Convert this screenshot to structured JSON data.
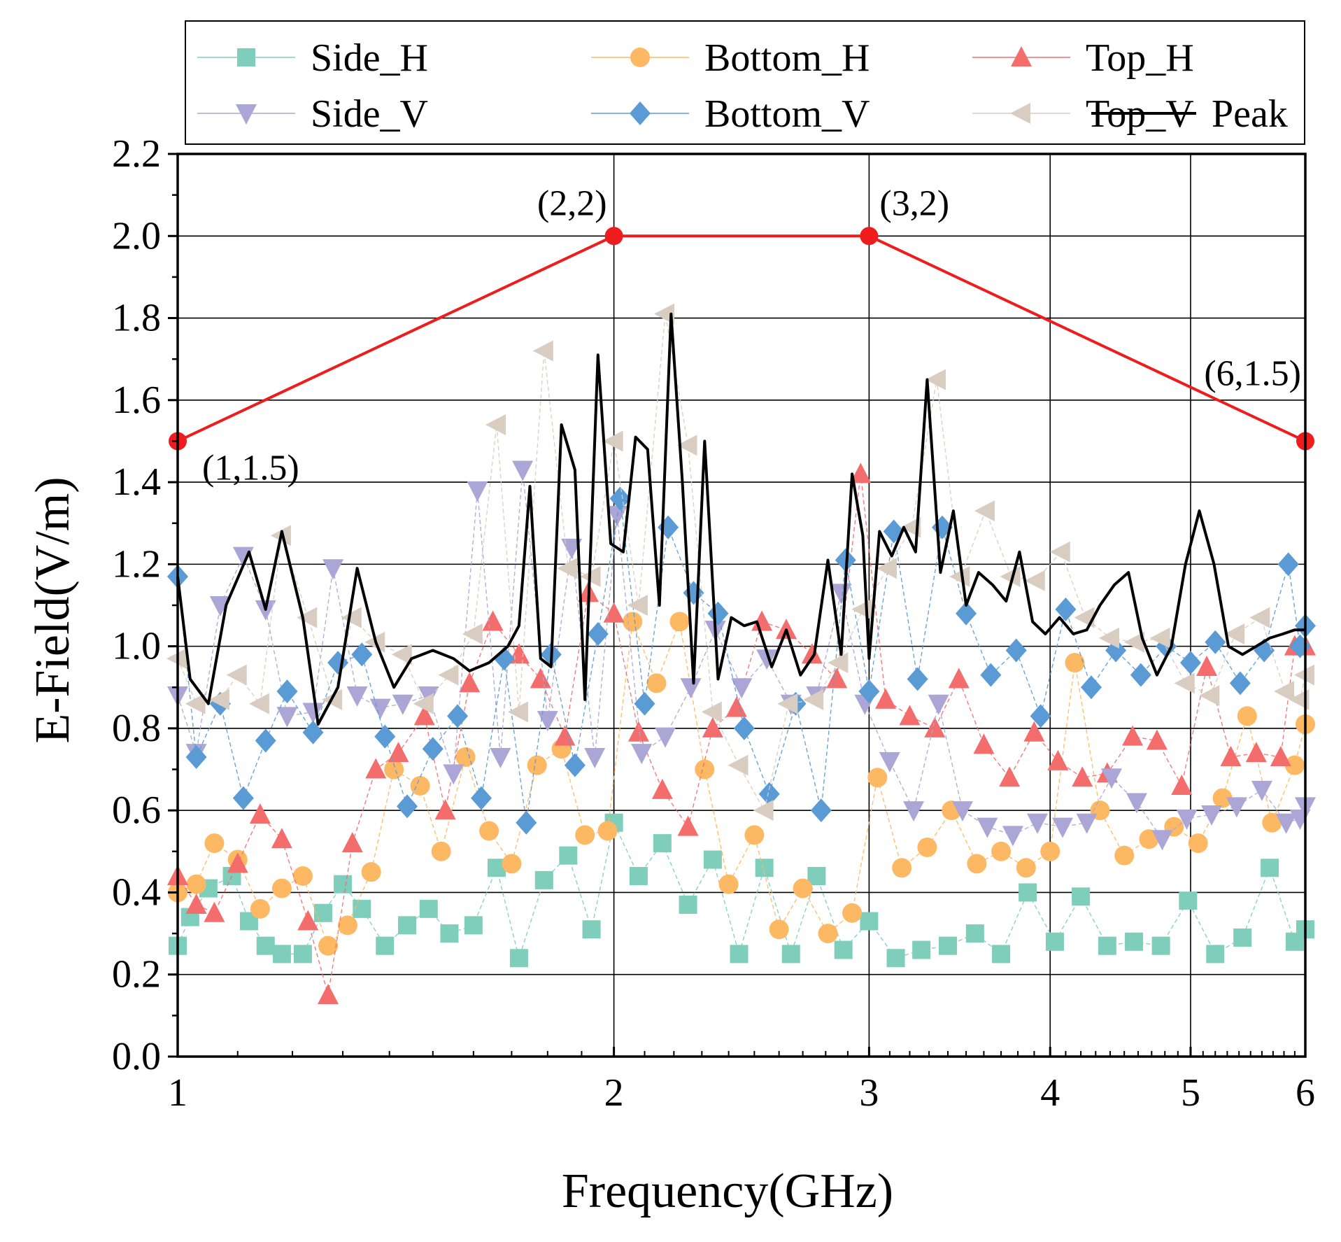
{
  "chart_data": {
    "type": "scatter",
    "xlabel": "Frequency(GHz)",
    "ylabel": "E-Field(V/m)",
    "xscale": "log",
    "xlim": [
      1,
      6
    ],
    "ylim": [
      0,
      2.2
    ],
    "xticks": [
      1,
      2,
      3,
      4,
      5,
      6
    ],
    "xtick_labels": [
      "1",
      "2",
      "3",
      "4",
      "5",
      "6"
    ],
    "yticks": [
      0,
      0.2,
      0.4,
      0.6,
      0.8,
      1.0,
      1.2,
      1.4,
      1.6,
      1.8,
      2.0,
      2.2
    ],
    "ytick_labels": [
      "0.0",
      "0.2",
      "0.4",
      "0.6",
      "0.8",
      "1.0",
      "1.2",
      "1.4",
      "1.6",
      "1.8",
      "2.0",
      "2.2"
    ],
    "grid": true,
    "legend_position": "top",
    "limit_line": {
      "color": "#ee1c1c",
      "points": [
        [
          1,
          1.5
        ],
        [
          2,
          2.0
        ],
        [
          3,
          2.0
        ],
        [
          6,
          1.5
        ]
      ],
      "labels": [
        "(1,1.5)",
        "(2,2)",
        "(3,2)",
        "(6,1.5)"
      ]
    },
    "series": [
      {
        "name": "Side_H",
        "marker": "square",
        "color": "#7fcdbb",
        "x": [
          1.0,
          1.02,
          1.05,
          1.09,
          1.12,
          1.15,
          1.18,
          1.22,
          1.26,
          1.3,
          1.34,
          1.39,
          1.44,
          1.49,
          1.54,
          1.6,
          1.66,
          1.72,
          1.79,
          1.86,
          1.93,
          2.0,
          2.08,
          2.16,
          2.25,
          2.34,
          2.44,
          2.54,
          2.65,
          2.76,
          2.88,
          3.0,
          3.13,
          3.26,
          3.4,
          3.55,
          3.7,
          3.86,
          4.03,
          4.2,
          4.38,
          4.57,
          4.77,
          4.98,
          5.2,
          5.43,
          5.67,
          5.9,
          6.0
        ],
        "y": [
          0.27,
          0.34,
          0.41,
          0.44,
          0.33,
          0.27,
          0.25,
          0.25,
          0.35,
          0.42,
          0.36,
          0.27,
          0.32,
          0.36,
          0.3,
          0.32,
          0.46,
          0.24,
          0.43,
          0.49,
          0.31,
          0.57,
          0.44,
          0.52,
          0.37,
          0.48,
          0.25,
          0.46,
          0.25,
          0.44,
          0.26,
          0.33,
          0.24,
          0.26,
          0.27,
          0.3,
          0.25,
          0.4,
          0.28,
          0.39,
          0.27,
          0.28,
          0.27,
          0.38,
          0.25,
          0.29,
          0.46,
          0.28,
          0.31
        ]
      },
      {
        "name": "Bottom_H",
        "marker": "circle",
        "color": "#fdb863",
        "x": [
          1.0,
          1.03,
          1.06,
          1.1,
          1.14,
          1.18,
          1.22,
          1.27,
          1.31,
          1.36,
          1.41,
          1.47,
          1.52,
          1.58,
          1.64,
          1.7,
          1.77,
          1.84,
          1.91,
          1.98,
          2.06,
          2.14,
          2.22,
          2.31,
          2.4,
          2.5,
          2.6,
          2.7,
          2.81,
          2.92,
          3.04,
          3.16,
          3.29,
          3.42,
          3.56,
          3.7,
          3.85,
          4.0,
          4.16,
          4.33,
          4.5,
          4.68,
          4.87,
          5.06,
          5.26,
          5.47,
          5.69,
          5.9,
          6.0
        ],
        "y": [
          0.4,
          0.42,
          0.52,
          0.48,
          0.36,
          0.41,
          0.44,
          0.27,
          0.32,
          0.45,
          0.7,
          0.66,
          0.5,
          0.73,
          0.55,
          0.47,
          0.71,
          0.75,
          0.54,
          0.55,
          1.06,
          0.91,
          1.06,
          0.7,
          0.42,
          0.54,
          0.31,
          0.41,
          0.3,
          0.35,
          0.68,
          0.46,
          0.51,
          0.6,
          0.47,
          0.5,
          0.46,
          0.5,
          0.96,
          0.6,
          0.49,
          0.53,
          0.56,
          0.52,
          0.63,
          0.83,
          0.57,
          0.71,
          0.81
        ]
      },
      {
        "name": "Top_H",
        "marker": "triangle-up",
        "color": "#f46d6d",
        "x": [
          1.0,
          1.03,
          1.06,
          1.1,
          1.14,
          1.18,
          1.23,
          1.27,
          1.32,
          1.37,
          1.42,
          1.48,
          1.53,
          1.59,
          1.65,
          1.72,
          1.78,
          1.85,
          1.92,
          2.0,
          2.08,
          2.16,
          2.25,
          2.34,
          2.43,
          2.53,
          2.63,
          2.74,
          2.85,
          2.96,
          3.08,
          3.2,
          3.33,
          3.46,
          3.6,
          3.75,
          3.9,
          4.05,
          4.21,
          4.38,
          4.56,
          4.74,
          4.93,
          5.13,
          5.33,
          5.55,
          5.77,
          5.9,
          6.0
        ],
        "y": [
          0.44,
          0.37,
          0.35,
          0.47,
          0.59,
          0.53,
          0.33,
          0.15,
          0.52,
          0.7,
          0.74,
          0.83,
          0.6,
          0.91,
          1.06,
          0.98,
          0.92,
          0.78,
          1.13,
          1.08,
          0.79,
          0.65,
          0.56,
          0.8,
          0.85,
          1.06,
          1.04,
          0.98,
          0.92,
          1.42,
          0.87,
          0.83,
          0.8,
          0.92,
          0.76,
          0.68,
          0.79,
          0.72,
          0.68,
          0.69,
          0.78,
          0.77,
          0.66,
          0.95,
          0.73,
          0.74,
          0.73,
          1.0,
          1.0
        ]
      },
      {
        "name": "Side_V",
        "marker": "triangle-down",
        "color": "#aba6d6",
        "x": [
          1.0,
          1.03,
          1.07,
          1.11,
          1.15,
          1.19,
          1.24,
          1.28,
          1.33,
          1.38,
          1.43,
          1.49,
          1.55,
          1.61,
          1.67,
          1.73,
          1.8,
          1.87,
          1.94,
          2.01,
          2.09,
          2.17,
          2.26,
          2.35,
          2.45,
          2.55,
          2.65,
          2.76,
          2.87,
          2.98,
          3.1,
          3.22,
          3.35,
          3.48,
          3.62,
          3.77,
          3.92,
          4.08,
          4.24,
          4.41,
          4.59,
          4.78,
          4.97,
          5.17,
          5.38,
          5.6,
          5.82,
          5.95,
          6.0
        ],
        "y": [
          0.88,
          0.74,
          1.1,
          1.22,
          1.09,
          0.83,
          0.84,
          1.19,
          0.88,
          0.85,
          0.86,
          0.88,
          0.69,
          1.38,
          0.73,
          1.43,
          0.82,
          1.24,
          0.73,
          1.32,
          0.74,
          0.78,
          0.9,
          1.04,
          0.9,
          0.97,
          0.86,
          0.88,
          1.13,
          0.86,
          0.72,
          0.6,
          0.86,
          0.6,
          0.56,
          0.54,
          0.57,
          0.56,
          0.57,
          0.68,
          0.62,
          0.53,
          0.58,
          0.59,
          0.61,
          0.65,
          0.57,
          0.58,
          0.61
        ]
      },
      {
        "name": "Bottom_V",
        "marker": "diamond",
        "color": "#5b9bd5",
        "x": [
          1.0,
          1.03,
          1.07,
          1.11,
          1.15,
          1.19,
          1.24,
          1.29,
          1.34,
          1.39,
          1.44,
          1.5,
          1.56,
          1.62,
          1.68,
          1.74,
          1.81,
          1.88,
          1.95,
          2.02,
          2.1,
          2.18,
          2.27,
          2.36,
          2.46,
          2.56,
          2.67,
          2.78,
          2.89,
          3.0,
          3.12,
          3.24,
          3.37,
          3.5,
          3.64,
          3.79,
          3.94,
          4.1,
          4.27,
          4.44,
          4.62,
          4.81,
          5.0,
          5.2,
          5.41,
          5.62,
          5.84,
          5.95,
          6.0
        ],
        "y": [
          1.17,
          0.73,
          0.86,
          0.63,
          0.77,
          0.89,
          0.79,
          0.96,
          0.98,
          0.78,
          0.61,
          0.75,
          0.83,
          0.63,
          0.97,
          0.57,
          0.98,
          0.71,
          1.03,
          1.36,
          0.86,
          1.29,
          1.13,
          1.08,
          0.8,
          0.64,
          0.86,
          0.6,
          1.21,
          0.89,
          1.28,
          0.92,
          1.29,
          1.08,
          0.93,
          0.99,
          0.83,
          1.09,
          0.9,
          0.99,
          0.93,
          1.0,
          0.96,
          1.01,
          0.91,
          0.99,
          1.2,
          1.0,
          1.05
        ]
      },
      {
        "name": "Top_V",
        "marker": "triangle-left",
        "color": "#d9ccc1",
        "x": [
          1.0,
          1.03,
          1.07,
          1.1,
          1.14,
          1.18,
          1.23,
          1.28,
          1.32,
          1.37,
          1.43,
          1.48,
          1.54,
          1.6,
          1.66,
          1.72,
          1.79,
          1.86,
          1.93,
          2.0,
          2.08,
          2.17,
          2.25,
          2.34,
          2.44,
          2.54,
          2.64,
          2.75,
          2.86,
          2.97,
          3.09,
          3.21,
          3.34,
          3.47,
          3.61,
          3.76,
          3.91,
          4.07,
          4.23,
          4.4,
          4.58,
          4.77,
          4.96,
          5.16,
          5.37,
          5.59,
          5.81,
          5.95,
          6.0
        ],
        "y": [
          0.97,
          0.86,
          0.87,
          0.93,
          0.86,
          1.27,
          1.07,
          0.87,
          1.07,
          1.01,
          0.98,
          0.86,
          0.93,
          1.03,
          1.54,
          0.84,
          1.72,
          1.19,
          1.17,
          1.5,
          1.1,
          1.81,
          1.49,
          0.84,
          0.71,
          0.6,
          0.86,
          0.87,
          0.96,
          1.09,
          1.19,
          1.29,
          1.65,
          1.17,
          1.33,
          1.17,
          1.16,
          1.23,
          1.07,
          1.02,
          1.01,
          1.02,
          0.91,
          0.88,
          1.03,
          1.07,
          0.89,
          0.87,
          0.93
        ]
      },
      {
        "name": "Peak",
        "marker": "none",
        "color": "#000000",
        "x": [
          1.0,
          1.02,
          1.05,
          1.08,
          1.12,
          1.15,
          1.18,
          1.22,
          1.25,
          1.29,
          1.33,
          1.37,
          1.41,
          1.45,
          1.5,
          1.55,
          1.59,
          1.64,
          1.69,
          1.72,
          1.75,
          1.78,
          1.81,
          1.84,
          1.88,
          1.91,
          1.95,
          1.99,
          2.03,
          2.07,
          2.11,
          2.15,
          2.19,
          2.23,
          2.27,
          2.31,
          2.36,
          2.41,
          2.46,
          2.51,
          2.57,
          2.63,
          2.69,
          2.75,
          2.81,
          2.87,
          2.92,
          2.97,
          3.0,
          3.05,
          3.11,
          3.17,
          3.23,
          3.29,
          3.36,
          3.43,
          3.5,
          3.57,
          3.65,
          3.73,
          3.81,
          3.89,
          3.97,
          4.06,
          4.15,
          4.24,
          4.33,
          4.43,
          4.53,
          4.63,
          4.74,
          4.85,
          4.96,
          5.07,
          5.19,
          5.31,
          5.43,
          5.55,
          5.67,
          5.79,
          5.9,
          6.0
        ],
        "y": [
          1.17,
          0.92,
          0.86,
          1.1,
          1.23,
          1.09,
          1.28,
          1.07,
          0.81,
          0.9,
          1.19,
          1.01,
          0.9,
          0.97,
          0.99,
          0.97,
          0.94,
          0.96,
          1.0,
          1.05,
          1.39,
          0.97,
          0.95,
          1.54,
          1.43,
          0.87,
          1.71,
          1.25,
          1.23,
          1.51,
          1.48,
          1.1,
          1.81,
          1.4,
          0.91,
          1.5,
          0.92,
          1.07,
          1.05,
          1.06,
          0.95,
          1.04,
          0.93,
          0.98,
          1.21,
          0.98,
          1.42,
          1.27,
          0.97,
          1.28,
          1.22,
          1.29,
          1.23,
          1.65,
          1.18,
          1.33,
          1.1,
          1.18,
          1.15,
          1.11,
          1.23,
          1.06,
          1.03,
          1.07,
          1.03,
          1.04,
          1.1,
          1.15,
          1.18,
          1.02,
          0.93,
          1.0,
          1.2,
          1.33,
          1.2,
          1.0,
          0.98,
          1.0,
          1.02,
          1.03,
          1.04,
          1.04
        ]
      }
    ]
  }
}
